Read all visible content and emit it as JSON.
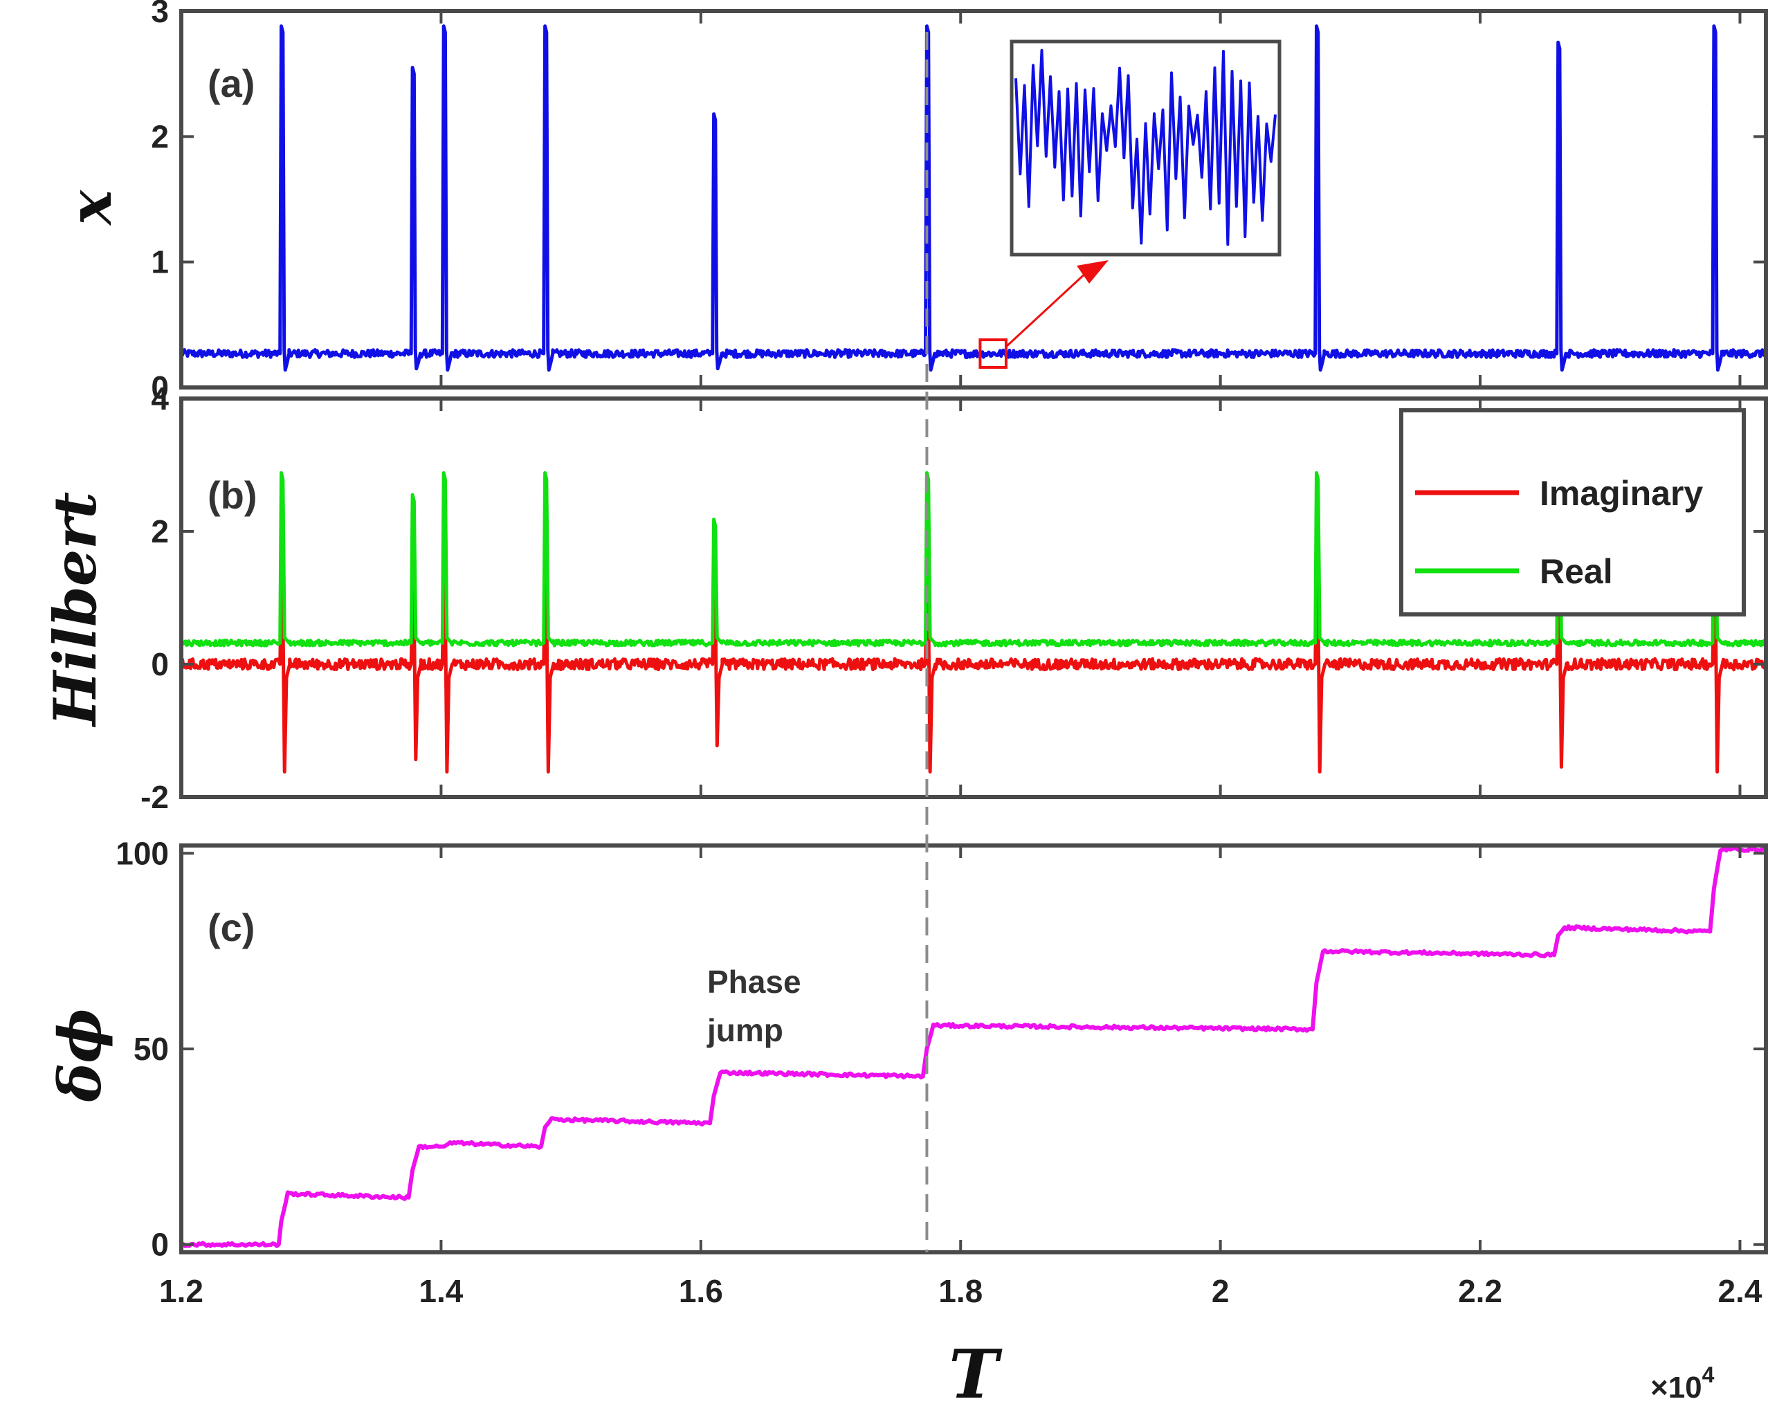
{
  "chart_data": [
    {
      "type": "line",
      "panel_label": "(a)",
      "ylabel": "x",
      "xlim": [
        1.2,
        2.42
      ],
      "ylim": [
        0,
        3
      ],
      "yticks": [
        "0",
        "1",
        "2",
        "3"
      ],
      "baseline": 0.27,
      "series": [
        {
          "color": "#1010e6",
          "spikes": [
            {
              "x": 1.277,
              "peak": 2.88,
              "trough": 0.14
            },
            {
              "x": 1.378,
              "peak": 2.55,
              "trough": 0.15
            },
            {
              "x": 1.402,
              "peak": 2.88,
              "trough": 0.14
            },
            {
              "x": 1.48,
              "peak": 2.88,
              "trough": 0.14
            },
            {
              "x": 1.61,
              "peak": 2.18,
              "trough": 0.15
            },
            {
              "x": 1.774,
              "peak": 2.88,
              "trough": 0.14
            },
            {
              "x": 2.074,
              "peak": 2.88,
              "trough": 0.14
            },
            {
              "x": 2.26,
              "peak": 2.75,
              "trough": 0.14
            },
            {
              "x": 2.38,
              "peak": 2.88,
              "trough": 0.14
            }
          ]
        }
      ],
      "inset": {
        "x_range": [
          1.815,
          1.835
        ],
        "y_range": [
          0.16,
          0.38
        ]
      }
    },
    {
      "type": "line",
      "panel_label": "(b)",
      "ylabel": "Hilbert",
      "xlim": [
        1.2,
        2.42
      ],
      "ylim": [
        -2,
        4
      ],
      "yticks": [
        "-2",
        "0",
        "2",
        "4"
      ],
      "legend": {
        "position": "top-right",
        "entries": [
          "Imaginary",
          "Real"
        ]
      },
      "series": [
        {
          "name": "Imaginary",
          "color": "#ee1010",
          "baseline": 0.0,
          "spike_peak": 1.75,
          "spike_trough": -1.62
        },
        {
          "name": "Real",
          "color": "#11e011",
          "baseline": 0.32,
          "spike_peaks": [
            2.88,
            2.55,
            2.88,
            2.88,
            2.18,
            2.88,
            2.88,
            2.75,
            2.88
          ]
        }
      ],
      "spike_x": [
        1.277,
        1.378,
        1.402,
        1.48,
        1.61,
        1.774,
        2.074,
        2.26,
        2.38
      ]
    },
    {
      "type": "line",
      "panel_label": "(c)",
      "ylabel": "δϕ",
      "xlabel": "T",
      "xlim": [
        1.2,
        2.42
      ],
      "ylim": [
        -2,
        102
      ],
      "yticks": [
        "0",
        "50",
        "100"
      ],
      "xticks": [
        1.2,
        1.4,
        1.6,
        1.8,
        2.0,
        2.2,
        2.4
      ],
      "xtick_labels": [
        "1.2",
        "1.4",
        "1.6",
        "1.8",
        "2",
        "2.2",
        "2.4"
      ],
      "x_exponent_prefix": "×10",
      "x_exponent": "4",
      "annotation": [
        "Phase",
        "jump"
      ],
      "series": [
        {
          "color": "#ee10ee",
          "x": [
            1.2,
            1.275,
            1.277,
            1.282,
            1.375,
            1.378,
            1.383,
            1.398,
            1.402,
            1.407,
            1.477,
            1.48,
            1.485,
            1.607,
            1.61,
            1.615,
            1.771,
            1.774,
            1.779,
            2.071,
            2.074,
            2.079,
            2.257,
            2.26,
            2.265,
            2.377,
            2.38,
            2.385,
            2.42
          ],
          "y": [
            0,
            0,
            6,
            13,
            12,
            19,
            25,
            25,
            25,
            26,
            25,
            30,
            32,
            31,
            38,
            44,
            43,
            50,
            56,
            55,
            67,
            75,
            74,
            79,
            81,
            80,
            91,
            101,
            101
          ]
        }
      ]
    }
  ],
  "styles": {
    "axis_color": "#4a4a4a",
    "dashed_line_color": "#8c8c8c",
    "zoom_box_color": "#ee1010",
    "inset_border_color": "#4a4a4a"
  }
}
